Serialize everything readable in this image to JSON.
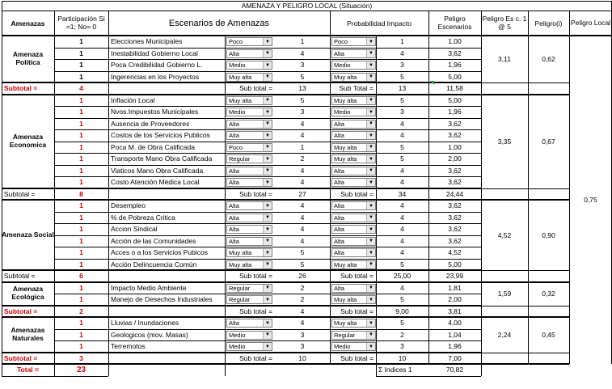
{
  "title": "AMENAZA Y PELIGRO LOCAL (Situación)",
  "headers": {
    "amenazas": "Amenazas",
    "participacion": "Participación Si =1; No= 0",
    "escenarios": "Escenarios de Amenazas",
    "prob_impacto": "Probabilidad  Impacto",
    "peligro_escenarios": "Peligro Escenarios",
    "peligro_esc": "Peligro Es c. 1 @ 5",
    "peligro_i": "Peligro(i)",
    "peligro_local": "Peligro Local"
  },
  "groups": [
    {
      "name": "Amenaza Política",
      "rows": [
        {
          "part": "1",
          "esc": "Elecciones Municipales",
          "p": "Poco",
          "pv": "1",
          "i": "Poco",
          "iv": "1",
          "pe": "1,00"
        },
        {
          "part": "1",
          "esc": "Inestabilidad Gobierno Local",
          "p": "Alta",
          "pv": "4",
          "i": "Alta",
          "iv": "4",
          "pe": "3,62"
        },
        {
          "part": "1",
          "esc": "Poca Credibilidad Gobierno L.",
          "p": "Medio",
          "pv": "3",
          "i": "Medio",
          "iv": "3",
          "pe": "1,96"
        },
        {
          "part": "1",
          "esc": "Ingerencias en los Proyectos",
          "p": "Muy alta",
          "pv": "5",
          "i": "Muy alta",
          "iv": "5",
          "pe": "5,00"
        }
      ],
      "peligro_esc": "3,11",
      "peligro_i": "0,62",
      "subtotal": {
        "label": "Subtotal =",
        "part": "4",
        "sub_label": "Sub total =",
        "p_sum": "13",
        "sub_label2": "Sub Total =",
        "i_sum": "13",
        "pe_sum": "11,58"
      }
    },
    {
      "name": "Amenaza Economica",
      "rows": [
        {
          "part": "1",
          "esc": "Inflación Local",
          "p": "Muy alta",
          "pv": "5",
          "i": "Muy alta",
          "iv": "5",
          "pe": "5,00"
        },
        {
          "part": "1",
          "esc": "Nvos.Impuestos Municipales",
          "p": "Medio",
          "pv": "3",
          "i": "Medio",
          "iv": "3",
          "pe": "1,96"
        },
        {
          "part": "1",
          "esc": "Ausencia de Proveedores",
          "p": "Alta",
          "pv": "4",
          "i": "Alta",
          "iv": "4",
          "pe": "3,62"
        },
        {
          "part": "1",
          "esc": "Costos de los Servicios Publicos",
          "p": "Alta",
          "pv": "4",
          "i": "Alta",
          "iv": "4",
          "pe": "3,62"
        },
        {
          "part": "1",
          "esc": "Poca M. de Obra Calificada",
          "p": "Poco",
          "pv": "1",
          "i": "Muy alta",
          "iv": "5",
          "pe": "1,00"
        },
        {
          "part": "1",
          "esc": "Transporte Mano Obra Calificada",
          "p": "Regular",
          "pv": "2",
          "i": "Muy alta",
          "iv": "5",
          "pe": "2,00"
        },
        {
          "part": "1",
          "esc": "Viaticos Mano Obra Calificada",
          "p": "Alta",
          "pv": "4",
          "i": "Alta",
          "iv": "4",
          "pe": "3,62"
        },
        {
          "part": "1",
          "esc": "Costo Atención Médica Local",
          "p": "Alta",
          "pv": "4",
          "i": "Alta",
          "iv": "4",
          "pe": "3,62"
        }
      ],
      "peligro_esc": "3,35",
      "peligro_i": "0,67",
      "subtotal": {
        "label": "Subtotal =",
        "part": "8",
        "sub_label": "Sub total =",
        "p_sum": "27",
        "sub_label2": "Sub total =",
        "i_sum": "34",
        "pe_sum": "24,44"
      }
    },
    {
      "name": "Amenaza Social",
      "rows": [
        {
          "part": "1",
          "esc": "Desempleo",
          "p": "Alta",
          "pv": "4",
          "i": "Alta",
          "iv": "4",
          "pe": "3,62"
        },
        {
          "part": "1",
          "esc": "% de Pobreza Critica",
          "p": "Alta",
          "pv": "4",
          "i": "Alta",
          "iv": "4",
          "pe": "3,62"
        },
        {
          "part": "1",
          "esc": "Accion Sindical",
          "p": "Alta",
          "pv": "4",
          "i": "Alta",
          "iv": "4",
          "pe": "3,62"
        },
        {
          "part": "1",
          "esc": "Acción de las Comunidades",
          "p": "Alta",
          "pv": "4",
          "i": "Alta",
          "iv": "4",
          "pe": "3,62"
        },
        {
          "part": "1",
          "esc": "Acces o a los Servicios Pubicos",
          "p": "Muy alta",
          "pv": "5",
          "i": "Alta",
          "iv": "4",
          "pe": "4,52"
        },
        {
          "part": "1",
          "esc": "Acción Delincuencia Común",
          "p": "Muy alta",
          "pv": "5",
          "i": "Muy alta",
          "iv": "5",
          "pe": "5,00"
        }
      ],
      "peligro_esc": "4,52",
      "peligro_i": "0,90",
      "subtotal": {
        "label": "Subtotal =",
        "part": "6",
        "sub_label": "Sub total =",
        "p_sum": "26",
        "sub_label2": "Sub total =",
        "i_sum": "25,00",
        "pe_sum": "23,99"
      }
    },
    {
      "name": "Amenaza Ecológica",
      "rows": [
        {
          "part": "1",
          "esc": "Impacto Medio Ambiente",
          "p": "Regular",
          "pv": "2",
          "i": "Alta",
          "iv": "4",
          "pe": "1,81"
        },
        {
          "part": "1",
          "esc": "Manejo de Desechos Industriales",
          "p": "Regular",
          "pv": "2",
          "i": "Muy alta",
          "iv": "5",
          "pe": "2,00"
        }
      ],
      "peligro_esc": "1,59",
      "peligro_i": "0,32",
      "subtotal": {
        "label": "Subtotal =",
        "part": "2",
        "sub_label": "Sub total =",
        "p_sum": "4",
        "sub_label2": "Sub total =",
        "i_sum": "9,00",
        "pe_sum": "3,81"
      }
    },
    {
      "name": "Amenazas Naturales",
      "rows": [
        {
          "part": "1",
          "esc": "Lluvias / Inundaciones",
          "p": "Alta",
          "pv": "4",
          "i": "Muy alta",
          "iv": "5",
          "pe": "4,00"
        },
        {
          "part": "1",
          "esc": "Geologicos (mov. Masas)",
          "p": "Medio",
          "pv": "3",
          "i": "Regular",
          "iv": "2",
          "pe": "1,04"
        },
        {
          "part": "1",
          "esc": "Terremotos",
          "p": "Medio",
          "pv": "3",
          "i": "Medio",
          "iv": "3",
          "pe": "1,96"
        }
      ],
      "peligro_esc": "2,24",
      "peligro_i": "0,45",
      "subtotal": {
        "label": "Subtotal =",
        "part": "3",
        "sub_label": "Sub total =",
        "p_sum": "10",
        "sub_label2": "Sub total =",
        "i_sum": "10",
        "pe_sum": "7,00"
      }
    }
  ],
  "peligro_local": "0,75",
  "total": {
    "label": "Total =",
    "part": "23",
    "indices_label": "Σ Indices 1",
    "indices_value": "70,82"
  },
  "colors": {
    "subtotal_red": "#cc0000",
    "grid": "#000000",
    "corner_marker": "#22aa22"
  }
}
